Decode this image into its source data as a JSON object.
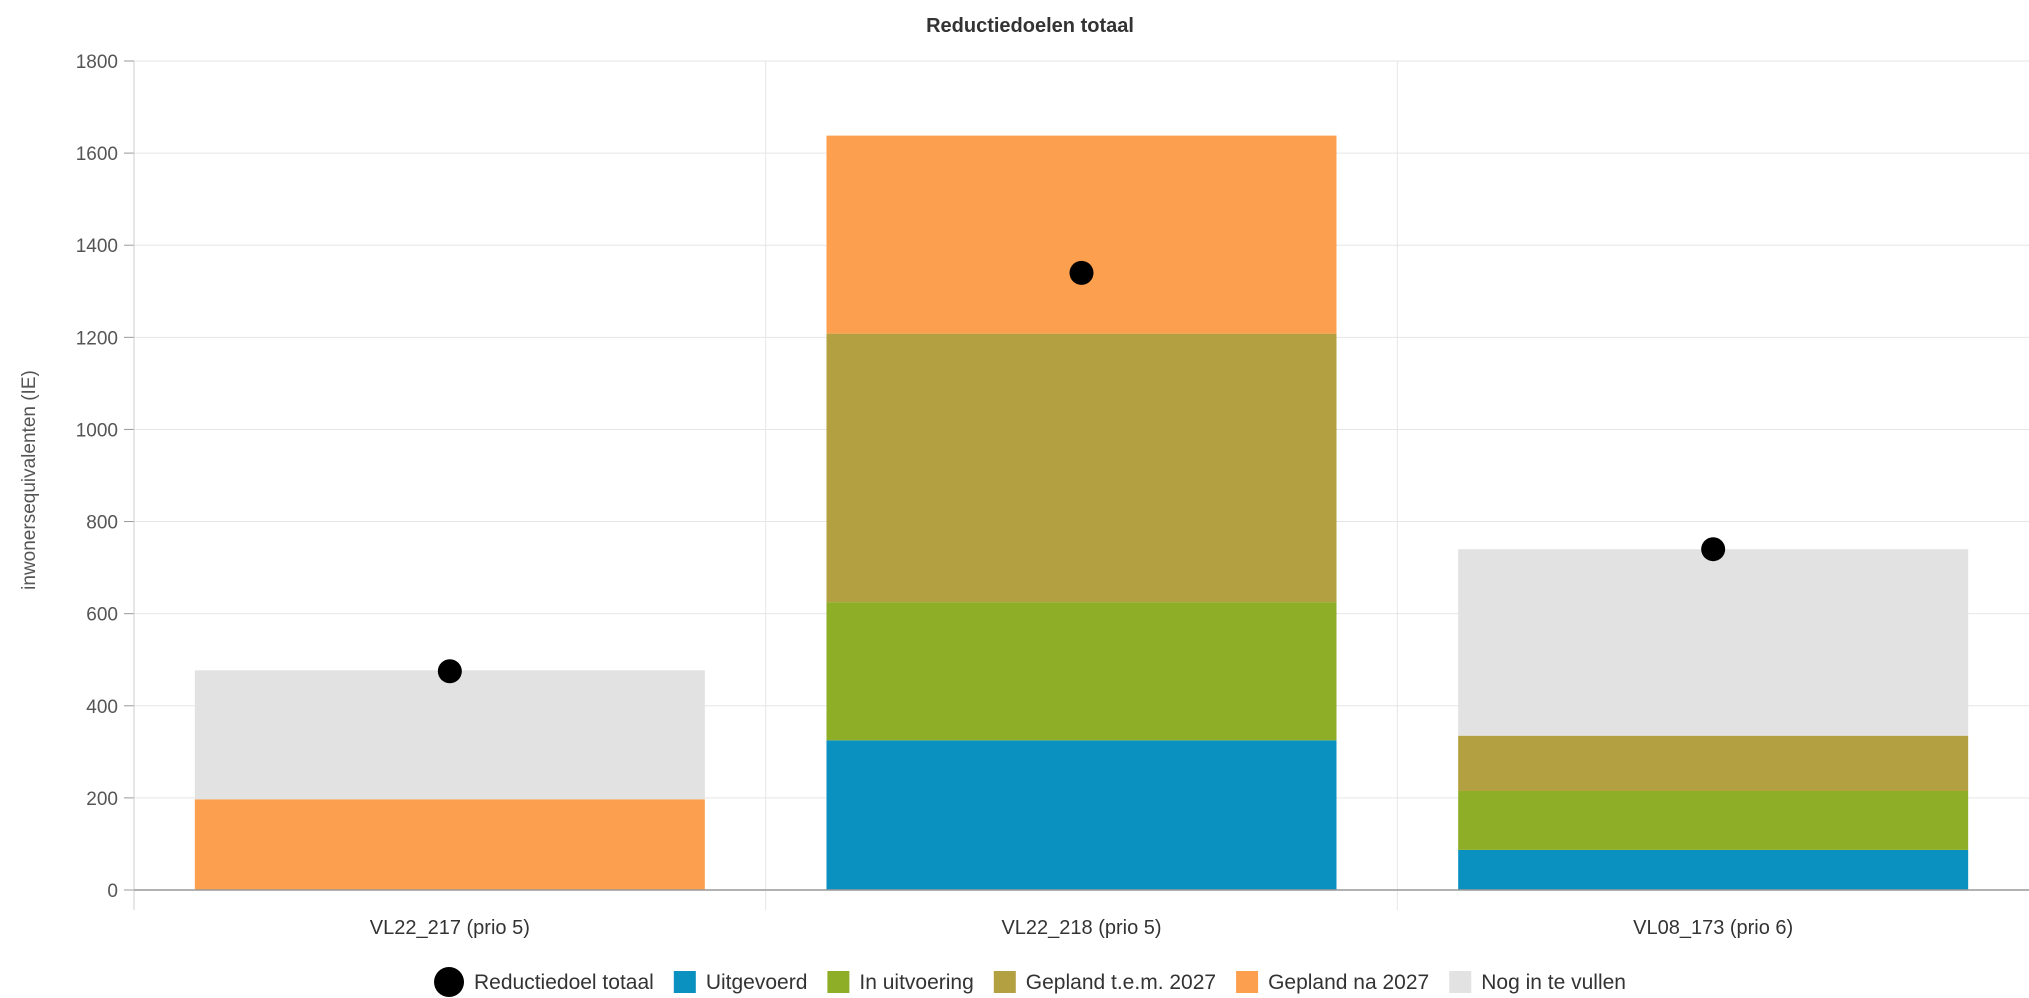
{
  "chart_data": {
    "type": "bar",
    "stacked": true,
    "title": "Reductiedoelen totaal",
    "xlabel": "",
    "ylabel": "inwonersequivalenten (IE)",
    "ylim": [
      0,
      1800
    ],
    "yticks": [
      0,
      200,
      400,
      600,
      800,
      1000,
      1200,
      1400,
      1600,
      1800
    ],
    "grid": true,
    "legend_position": "bottom",
    "categories": [
      "VL22_217 (prio 5)",
      "VL22_218 (prio 5)",
      "VL08_173 (prio 6)"
    ],
    "series": [
      {
        "name": "Uitgevoerd",
        "color": "#0a91bf",
        "values": [
          0,
          325,
          87
        ]
      },
      {
        "name": "In uitvoering",
        "color": "#8fae28",
        "values": [
          0,
          300,
          128
        ]
      },
      {
        "name": "Gepland t.e.m. 2027",
        "color": "#b3a040",
        "values": [
          0,
          583,
          120
        ]
      },
      {
        "name": "Gepland na 2027",
        "color": "#fca050",
        "values": [
          197,
          430,
          0
        ]
      },
      {
        "name": "Nog in te vullen",
        "color": "#e2e2e2",
        "values": [
          280,
          0,
          405
        ]
      }
    ],
    "markers": {
      "name": "Reductiedoel totaal",
      "color": "#000000",
      "values": [
        475,
        1340,
        740
      ]
    }
  }
}
